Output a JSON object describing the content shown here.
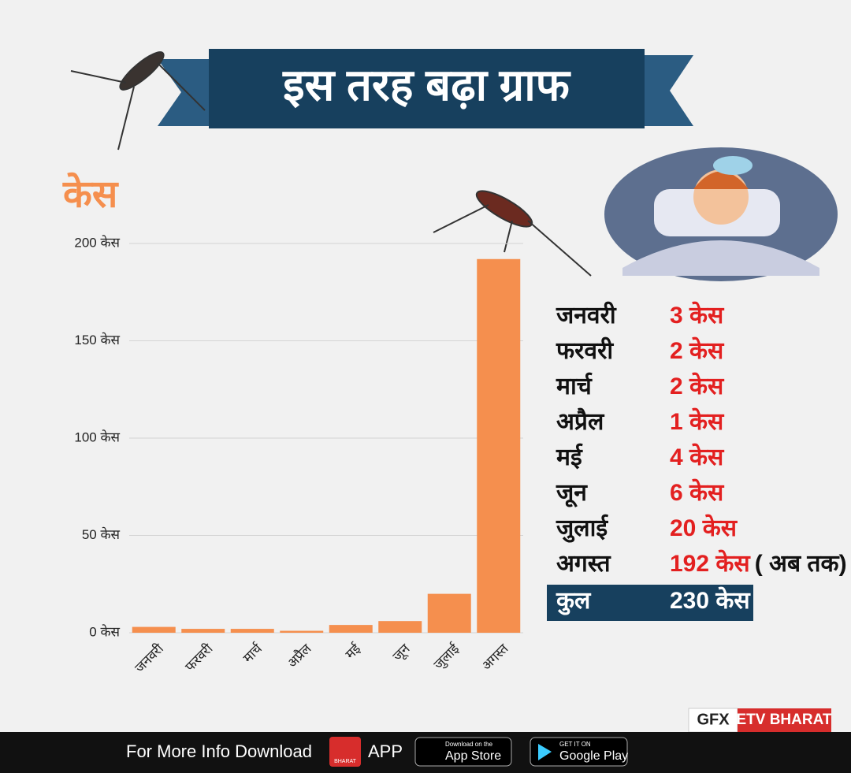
{
  "chart_data": {
    "type": "bar",
    "title": "इस तरह बढ़ा ग्राफ",
    "y_label": "केस",
    "categories": [
      "जनवरी",
      "फरवरी",
      "मार्च",
      "अप्रैल",
      "मई",
      "जून",
      "जुलाई",
      "अगस्त"
    ],
    "values": [
      3,
      2,
      2,
      1,
      4,
      6,
      20,
      192
    ],
    "color": "#f58f4e",
    "ylim": [
      0,
      200
    ],
    "yticks": [
      {
        "value": 0,
        "label": "0 केस"
      },
      {
        "value": 50,
        "label": "50 केस"
      },
      {
        "value": 100,
        "label": "100 केस"
      },
      {
        "value": 150,
        "label": "150 केस"
      },
      {
        "value": 200,
        "label": "200 केस"
      }
    ],
    "grid": true
  },
  "table": {
    "rows": [
      [
        "जनवरी",
        "3 केस"
      ],
      [
        "फरवरी",
        "2 केस"
      ],
      [
        "मार्च",
        "2 केस"
      ],
      [
        "अप्रैल",
        "1 केस"
      ],
      [
        "मई",
        "4 केस"
      ],
      [
        "जून",
        "6 केस"
      ],
      [
        "जुलाई",
        "20 केस"
      ],
      [
        "अगस्त",
        "192 केस"
      ]
    ],
    "note": "( अब तक)",
    "total": [
      "कुल",
      "230 केस"
    ]
  },
  "credit": {
    "gfx": "GFX",
    "brand": "ETV BHARAT"
  },
  "footer": {
    "text": "For More Info Download",
    "logo": "BHARAT",
    "app": "APP",
    "appstore_small": "Download on the",
    "appstore": "App Store",
    "play_small": "GET IT ON",
    "play": "Google Play"
  }
}
